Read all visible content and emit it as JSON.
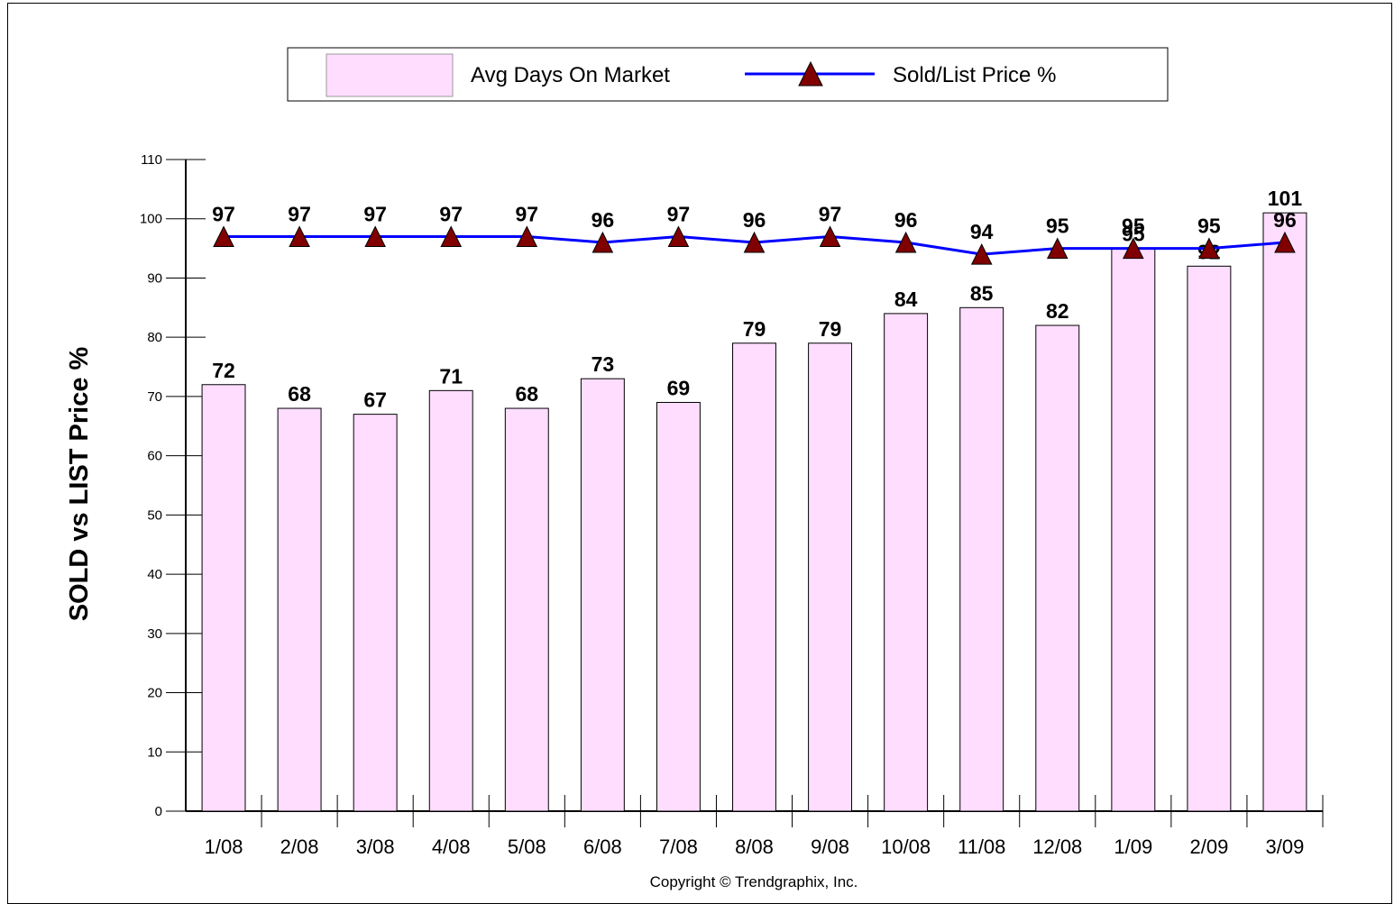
{
  "chart_data": {
    "type": "bar",
    "categories": [
      "1/08",
      "2/08",
      "3/08",
      "4/08",
      "5/08",
      "6/08",
      "7/08",
      "8/08",
      "9/08",
      "10/08",
      "11/08",
      "12/08",
      "1/09",
      "2/09",
      "3/09"
    ],
    "series": [
      {
        "name": "Avg Days On Market",
        "type": "bar",
        "color": "#ffddff",
        "values": [
          72,
          68,
          67,
          71,
          68,
          73,
          69,
          79,
          79,
          84,
          85,
          82,
          95,
          92,
          101
        ]
      },
      {
        "name": "Sold/List Price %",
        "type": "line",
        "color": "#0000ff",
        "marker": "triangle",
        "marker_color": "#800000",
        "values": [
          97,
          97,
          97,
          97,
          97,
          96,
          97,
          96,
          97,
          96,
          94,
          95,
          95,
          95,
          96
        ]
      }
    ],
    "ylabel": "SOLD vs LIST Price %",
    "xlabel": "",
    "ylim": [
      0,
      110
    ],
    "yticks": [
      0,
      10,
      20,
      30,
      40,
      50,
      60,
      70,
      80,
      90,
      100,
      110
    ],
    "legend_position": "top-center",
    "grid": false
  },
  "copyright": "Copyright © Trendgraphix, Inc."
}
